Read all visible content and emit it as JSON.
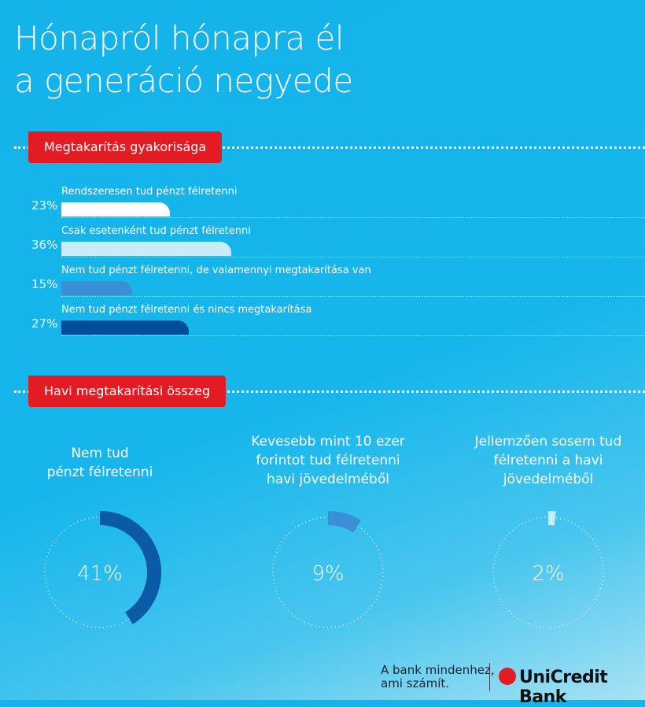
{
  "title": {
    "line1": "Hónapról hónapra él",
    "line2": "a generáció negyede"
  },
  "section1": {
    "label": "Megtakarítás gyakorisága"
  },
  "section2": {
    "label": "Havi megtakarítási összeg"
  },
  "chart_data": [
    {
      "type": "bar",
      "orientation": "horizontal",
      "title": "Megtakarítás gyakorisága",
      "categories": [
        "Rendszeresen tud pénzt félretenni",
        "Csak esetenként tud pénzt félretenni",
        "Nem tud pénzt félretenni, de valamennyi megtakarítása van",
        "Nem tud pénzt félretenni és nincs megtakarítása"
      ],
      "values": [
        23,
        36,
        15,
        27
      ],
      "value_labels": [
        "23%",
        "36%",
        "15%",
        "27%"
      ],
      "colors": [
        "#ffffff",
        "#c8ecf8",
        "#3b8fd6",
        "#004e9b"
      ]
    },
    {
      "type": "pie",
      "variant": "donut",
      "title": "Havi megtakarítási összeg",
      "categories": [
        "Nem tud pénzt félretenni",
        "Kevesebb mint 10 ezer forintot tud félretenni havi jövedelméből",
        "Jellemzően sosem tud félretenni a havi jövedelméből"
      ],
      "captions": [
        [
          "Nem tud",
          "pénzt félretenni"
        ],
        [
          "Kevesebb mint 10 ezer",
          "forintot tud félretenni",
          "havi jövedelméből"
        ],
        [
          "Jellemzően sosem tud",
          "félretenni a havi",
          "jövedelméből"
        ]
      ],
      "values": [
        41,
        9,
        2
      ],
      "value_labels": [
        "41%",
        "9%",
        "2%"
      ],
      "colors": [
        "#0a5aa6",
        "#3b8fd6",
        "#c8ecf8"
      ]
    }
  ],
  "footer": {
    "tagline1": "A bank mindenhez,",
    "tagline2": "ami számít.",
    "brand": "UniCredit Bank"
  }
}
